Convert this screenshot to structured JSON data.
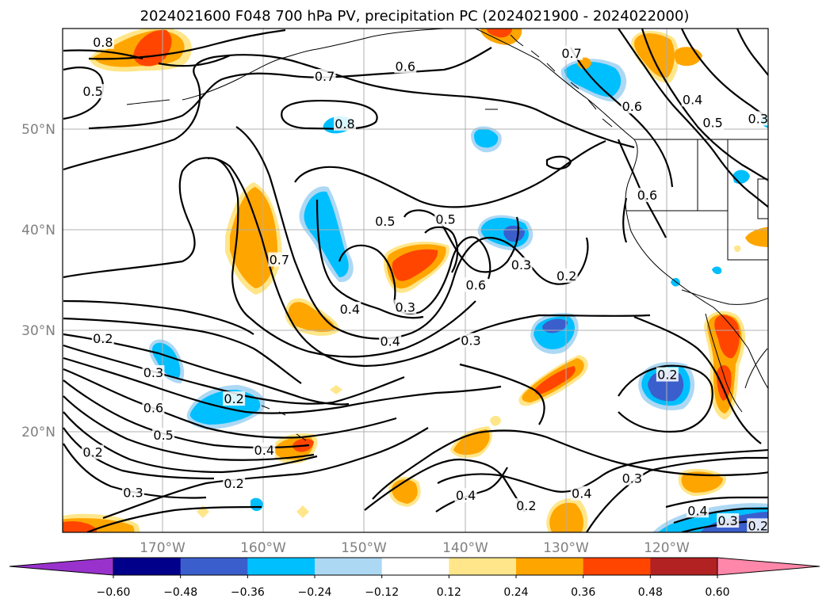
{
  "title": "2024021600 F048 700 hPa PV, precipitation PC (2024021900 - 2024022000)",
  "map": {
    "lon_ticks": [
      {
        "lon": -170,
        "label": "170°W"
      },
      {
        "lon": -160,
        "label": "160°W"
      },
      {
        "lon": -150,
        "label": "150°W"
      },
      {
        "lon": -140,
        "label": "140°W"
      },
      {
        "lon": -130,
        "label": "130°W"
      },
      {
        "lon": -120,
        "label": "120°W"
      }
    ],
    "lat_ticks": [
      {
        "lat": 50,
        "label": "50°N"
      },
      {
        "lat": 40,
        "label": "40°N"
      },
      {
        "lat": 30,
        "label": "30°N"
      },
      {
        "lat": 20,
        "label": "20°N"
      }
    ],
    "extent": {
      "lon_min": -180,
      "lon_max": -110,
      "lat_min": 10,
      "lat_max": 60
    }
  },
  "colorbar": {
    "labels": [
      "−0.60",
      "−0.48",
      "−0.36",
      "−0.24",
      "−0.12",
      "0.12",
      "0.24",
      "0.36",
      "0.48",
      "0.60"
    ],
    "colors": [
      "#9932cc",
      "#00008b",
      "#3a5fcd",
      "#00bfff",
      "#add8f4",
      "#ffffff",
      "#ffe68a",
      "#ffa500",
      "#ff4500",
      "#b22222",
      "#ff88aa"
    ]
  },
  "contour_labels": [
    {
      "text": "0.8",
      "lon": -176,
      "lat": 58.6
    },
    {
      "text": "0.5",
      "lon": -177,
      "lat": 53.7
    },
    {
      "text": "0.7",
      "lon": -154,
      "lat": 55.2
    },
    {
      "text": "0.6",
      "lon": -146,
      "lat": 56.2
    },
    {
      "text": "0.8",
      "lon": -152,
      "lat": 50.5
    },
    {
      "text": "0.7",
      "lon": -129.5,
      "lat": 57.5
    },
    {
      "text": "0.6",
      "lon": -123.5,
      "lat": 52.2
    },
    {
      "text": "0.4",
      "lon": -117.5,
      "lat": 52.9
    },
    {
      "text": "0.5",
      "lon": -115.5,
      "lat": 50.6
    },
    {
      "text": "0.3",
      "lon": -111,
      "lat": 51
    },
    {
      "text": "0.6",
      "lon": -122,
      "lat": 43.4
    },
    {
      "text": "0.5",
      "lon": -148,
      "lat": 40.8
    },
    {
      "text": "0.5",
      "lon": -142,
      "lat": 41
    },
    {
      "text": "0.7",
      "lon": -158.5,
      "lat": 37
    },
    {
      "text": "0.3",
      "lon": -134.5,
      "lat": 36.5
    },
    {
      "text": "0.2",
      "lon": -130,
      "lat": 35.4
    },
    {
      "text": "0.6",
      "lon": -139,
      "lat": 34.5
    },
    {
      "text": "0.3",
      "lon": -146,
      "lat": 32.3
    },
    {
      "text": "0.4",
      "lon": -151.5,
      "lat": 32.1
    },
    {
      "text": "0.4",
      "lon": -147.5,
      "lat": 28.9
    },
    {
      "text": "0.3",
      "lon": -139.5,
      "lat": 29
    },
    {
      "text": "0.2",
      "lon": -176,
      "lat": 29.2
    },
    {
      "text": "0.3",
      "lon": -171,
      "lat": 25.8
    },
    {
      "text": "0.2",
      "lon": -163,
      "lat": 23.2
    },
    {
      "text": "0.6",
      "lon": -171,
      "lat": 22.3
    },
    {
      "text": "0.5",
      "lon": -170,
      "lat": 19.6
    },
    {
      "text": "0.2",
      "lon": -177,
      "lat": 17.9
    },
    {
      "text": "0.4",
      "lon": -160,
      "lat": 18.1
    },
    {
      "text": "0.3",
      "lon": -173,
      "lat": 13.9
    },
    {
      "text": "0.2",
      "lon": -163,
      "lat": 14.8
    },
    {
      "text": "0.4",
      "lon": -140,
      "lat": 13.6
    },
    {
      "text": "0.2",
      "lon": -134,
      "lat": 12.6
    },
    {
      "text": "0.4",
      "lon": -128.5,
      "lat": 13.8
    },
    {
      "text": "0.3",
      "lon": -123.5,
      "lat": 15.3
    },
    {
      "text": "0.2",
      "lon": -120,
      "lat": 25.6
    },
    {
      "text": "0.4",
      "lon": -117,
      "lat": 12.1
    },
    {
      "text": "0.3",
      "lon": -114,
      "lat": 11.1
    },
    {
      "text": "0.2",
      "lon": -111,
      "lat": 10.6
    }
  ]
}
